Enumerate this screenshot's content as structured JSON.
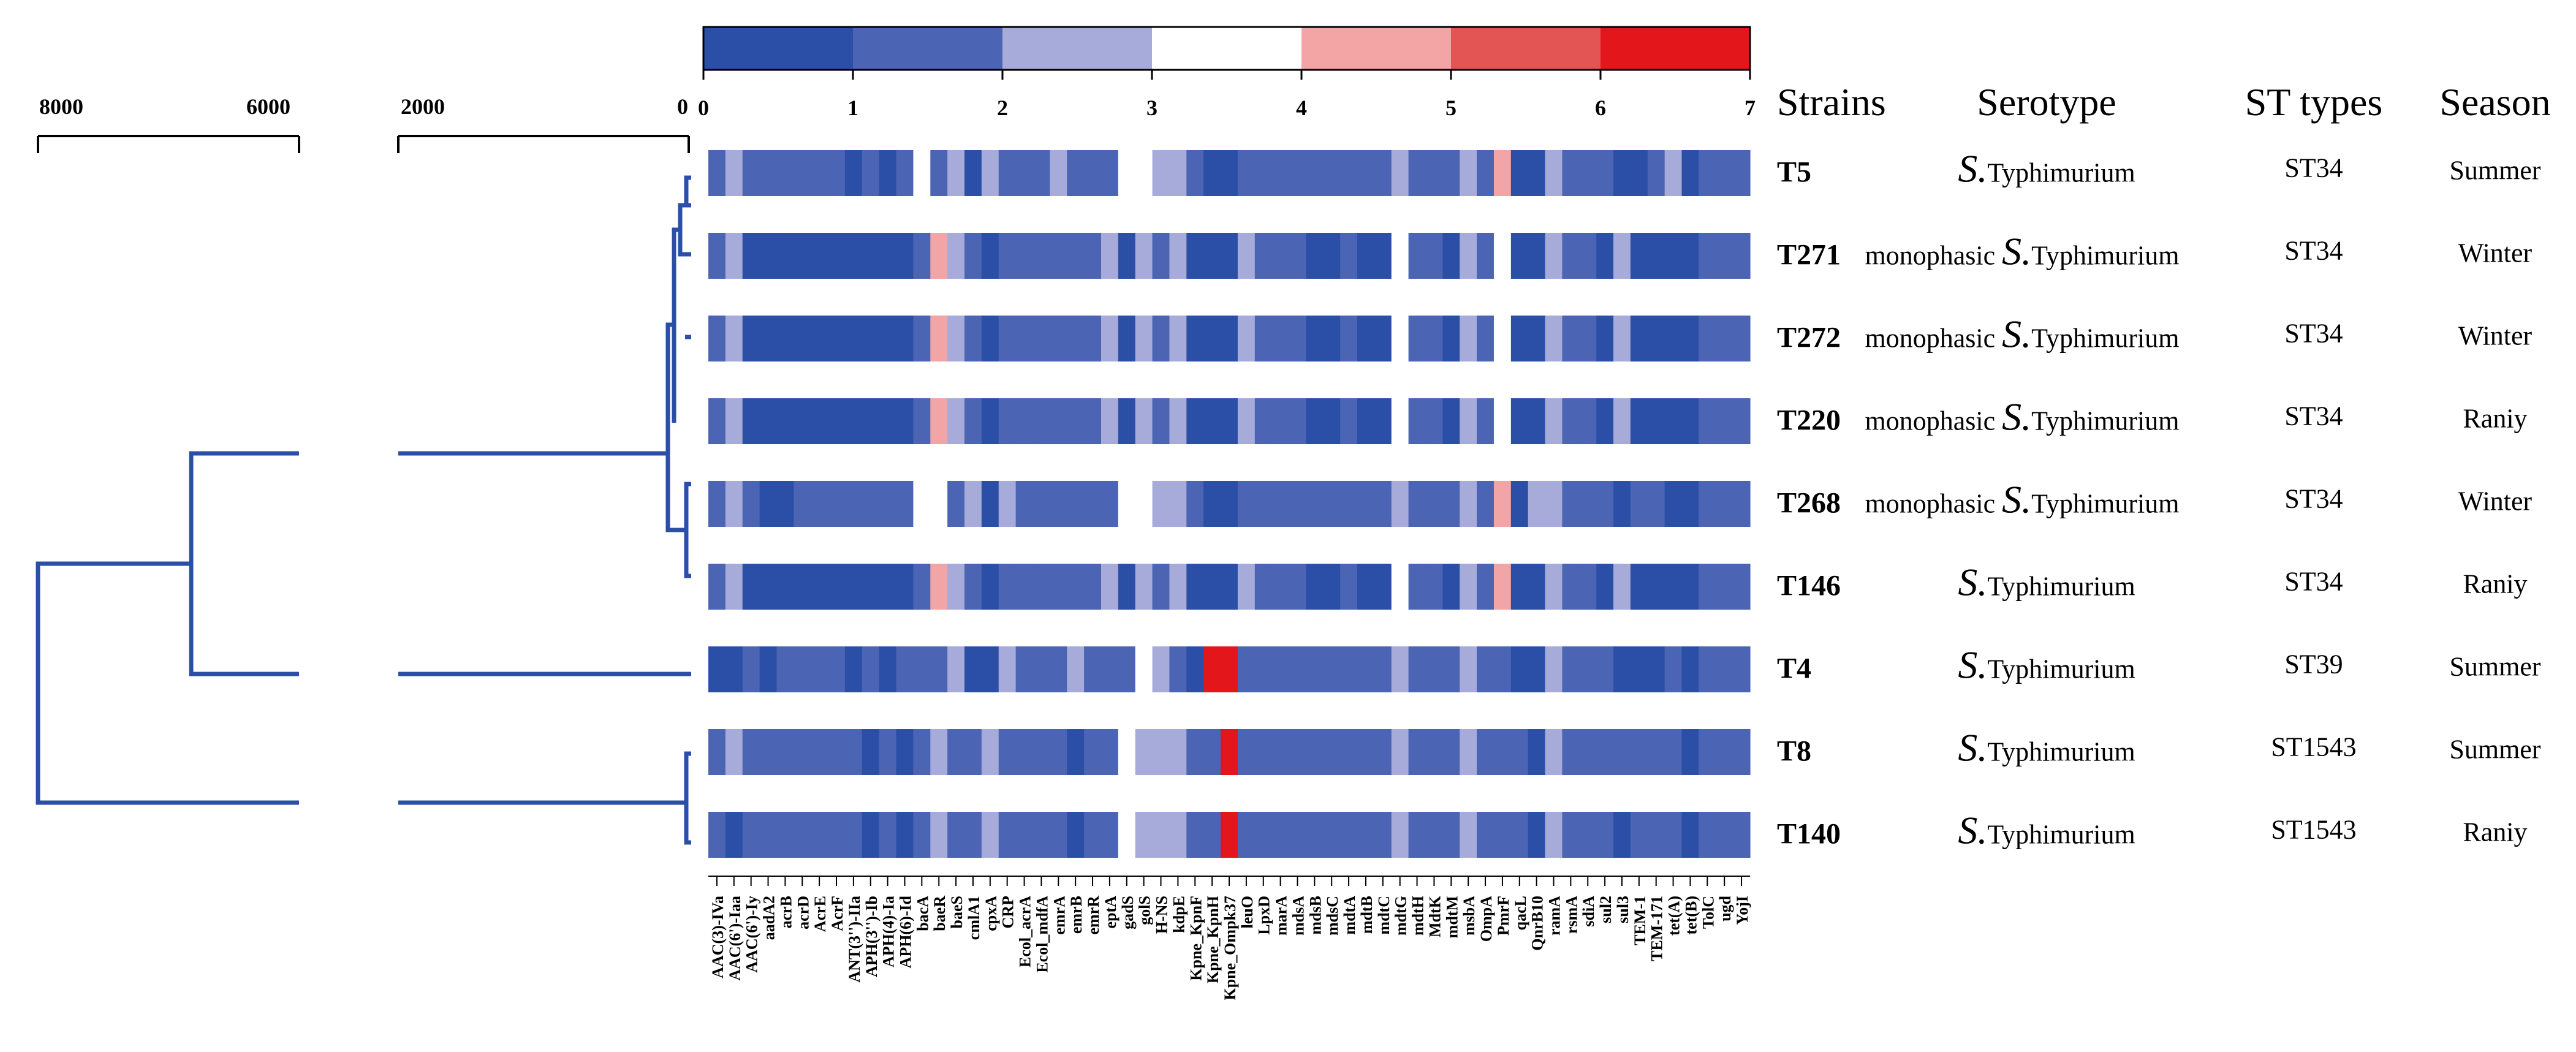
{
  "chart_data": {
    "type": "heatmap",
    "title": "",
    "colorbar": {
      "min": 0,
      "max": 7,
      "ticks": [
        "0",
        "1",
        "2",
        "3",
        "4",
        "5",
        "6",
        "7"
      ],
      "colors": [
        "#2b4fa7",
        "#4b64b3",
        "#a6abd9",
        "#ffffff",
        "#f3a4a4",
        "#e35555",
        "#e3161c"
      ]
    },
    "dendrogram_axis": {
      "ticks": [
        "8000",
        "6000",
        "2000",
        "0"
      ]
    },
    "column_headers": {
      "strains": "Strains",
      "serotype": "Serotype",
      "st_types": "ST types",
      "season": "Season"
    },
    "genes": [
      "AAC(3)-IVa",
      "AAC(6')-Iaa",
      "AAC(6')-Iy",
      "aadA2",
      "acrB",
      "acrD",
      "AcrE",
      "AcrF",
      "ANT(3'')-IIa",
      "APH(3'')-Ib",
      "APH(4)-Ia",
      "APH(6)-Id",
      "bacA",
      "baeR",
      "baeS",
      "cmlA1",
      "cpxA",
      "CRP",
      "Ecol_acrA",
      "Ecol_mdfA",
      "emrA",
      "emrB",
      "emrR",
      "eptA",
      "gadS",
      "golS",
      "H-NS",
      "kdpE",
      "Kpne_KpnF",
      "Kpne_KpnH",
      "Kpne_Ompk37",
      "leuO",
      "LpxD",
      "marA",
      "mdsA",
      "mdsB",
      "mdsC",
      "mdtA",
      "mdtB",
      "mdtC",
      "mdtG",
      "mdtH",
      "MdtK",
      "mdtM",
      "msbA",
      "OmpA",
      "PmrF",
      "qacL",
      "QnrB10",
      "ramA",
      "rsmA",
      "sdiA",
      "sul2",
      "sul3",
      "TEM-1",
      "TEM-171",
      "tet(A)",
      "tet(B)",
      "TolC",
      "ugd",
      "YojI"
    ],
    "series": [
      {
        "name": "T5",
        "serotype_prefix": "",
        "serotype_species": "S.",
        "serotype_rest": "Typhimurium",
        "st": "ST34",
        "season": "Summer",
        "values": [
          1,
          2,
          1,
          1,
          1,
          1,
          1,
          1,
          0,
          1,
          0,
          1,
          3,
          1,
          2,
          0,
          2,
          1,
          1,
          1,
          2,
          1,
          1,
          1,
          3,
          3,
          2,
          2,
          1,
          0,
          0,
          1,
          1,
          1,
          1,
          1,
          1,
          1,
          1,
          1,
          2,
          1,
          1,
          1,
          2,
          1,
          4,
          0,
          0,
          2,
          1,
          1,
          1,
          0,
          0,
          1,
          2,
          0,
          1,
          1,
          1
        ]
      },
      {
        "name": "T271",
        "serotype_prefix": "monophasic ",
        "serotype_species": "S.",
        "serotype_rest": "Typhimurium",
        "st": "ST34",
        "season": "Winter",
        "values": [
          1,
          2,
          0,
          0,
          0,
          0,
          0,
          0,
          0,
          0,
          0,
          0,
          1,
          4,
          2,
          1,
          0,
          1,
          1,
          1,
          1,
          1,
          1,
          2,
          0,
          2,
          1,
          2,
          0,
          0,
          0,
          2,
          1,
          1,
          1,
          0,
          0,
          1,
          0,
          0,
          3,
          1,
          1,
          0,
          2,
          1,
          3,
          0,
          0,
          2,
          1,
          1,
          0,
          2,
          0,
          0,
          0,
          0,
          1,
          1,
          1
        ]
      },
      {
        "name": "T272",
        "serotype_prefix": "monophasic ",
        "serotype_species": "S.",
        "serotype_rest": "Typhimurium",
        "st": "ST34",
        "season": "Winter",
        "values": [
          1,
          2,
          0,
          0,
          0,
          0,
          0,
          0,
          0,
          0,
          0,
          0,
          1,
          4,
          2,
          1,
          0,
          1,
          1,
          1,
          1,
          1,
          1,
          2,
          0,
          2,
          1,
          2,
          0,
          0,
          0,
          2,
          1,
          1,
          1,
          0,
          0,
          1,
          0,
          0,
          3,
          1,
          1,
          0,
          2,
          1,
          3,
          0,
          0,
          2,
          1,
          1,
          0,
          2,
          0,
          0,
          0,
          0,
          1,
          1,
          1
        ]
      },
      {
        "name": "T220",
        "serotype_prefix": "monophasic ",
        "serotype_species": "S.",
        "serotype_rest": "Typhimurium",
        "st": "ST34",
        "season": "Raniy",
        "values": [
          1,
          2,
          0,
          0,
          0,
          0,
          0,
          0,
          0,
          0,
          0,
          0,
          1,
          4,
          2,
          1,
          0,
          1,
          1,
          1,
          1,
          1,
          1,
          2,
          0,
          2,
          1,
          2,
          0,
          0,
          0,
          2,
          1,
          1,
          1,
          0,
          0,
          1,
          0,
          0,
          3,
          1,
          1,
          0,
          2,
          1,
          3,
          0,
          0,
          2,
          1,
          1,
          0,
          2,
          0,
          0,
          0,
          0,
          1,
          1,
          1
        ]
      },
      {
        "name": "T268",
        "serotype_prefix": "monophasic ",
        "serotype_species": "S.",
        "serotype_rest": "Typhimurium",
        "st": "ST34",
        "season": "Winter",
        "values": [
          1,
          2,
          1,
          0,
          0,
          1,
          1,
          1,
          1,
          1,
          1,
          1,
          3,
          3,
          1,
          2,
          0,
          2,
          1,
          1,
          1,
          1,
          1,
          1,
          3,
          3,
          2,
          2,
          1,
          0,
          0,
          1,
          1,
          1,
          1,
          1,
          1,
          1,
          1,
          1,
          2,
          1,
          1,
          1,
          2,
          1,
          4,
          0,
          2,
          2,
          1,
          1,
          1,
          0,
          1,
          1,
          0,
          0,
          1,
          1,
          1
        ]
      },
      {
        "name": "T146",
        "serotype_prefix": "",
        "serotype_species": "S.",
        "serotype_rest": "Typhimurium",
        "st": "ST34",
        "season": "Raniy",
        "values": [
          1,
          2,
          0,
          0,
          0,
          0,
          0,
          0,
          0,
          0,
          0,
          0,
          1,
          4,
          2,
          1,
          0,
          1,
          1,
          1,
          1,
          1,
          1,
          2,
          0,
          2,
          1,
          2,
          0,
          0,
          0,
          2,
          1,
          1,
          1,
          0,
          0,
          1,
          0,
          0,
          3,
          1,
          1,
          0,
          2,
          1,
          4,
          0,
          0,
          2,
          1,
          1,
          0,
          2,
          0,
          0,
          0,
          0,
          1,
          1,
          1
        ]
      },
      {
        "name": "T4",
        "serotype_prefix": "",
        "serotype_species": "S.",
        "serotype_rest": "Typhimurium",
        "st": "ST39",
        "season": "Summer",
        "values": [
          0,
          0,
          1,
          0,
          1,
          1,
          1,
          1,
          0,
          1,
          0,
          1,
          1,
          1,
          2,
          0,
          0,
          2,
          1,
          1,
          1,
          2,
          1,
          1,
          1,
          3,
          2,
          1,
          0,
          6,
          6,
          1,
          1,
          1,
          1,
          1,
          1,
          1,
          1,
          1,
          2,
          1,
          1,
          1,
          2,
          1,
          1,
          0,
          0,
          2,
          1,
          1,
          1,
          0,
          0,
          0,
          1,
          0,
          1,
          1,
          1
        ]
      },
      {
        "name": "T8",
        "serotype_prefix": "",
        "serotype_species": "S.",
        "serotype_rest": "Typhimurium",
        "st": "ST1543",
        "season": "Summer",
        "values": [
          1,
          2,
          1,
          1,
          1,
          1,
          1,
          1,
          1,
          0,
          1,
          0,
          1,
          2,
          1,
          1,
          2,
          1,
          1,
          1,
          1,
          0,
          1,
          1,
          3,
          2,
          2,
          2,
          1,
          1,
          6,
          1,
          1,
          1,
          1,
          1,
          1,
          1,
          1,
          1,
          2,
          1,
          1,
          1,
          2,
          1,
          1,
          1,
          0,
          2,
          1,
          1,
          1,
          1,
          1,
          1,
          1,
          0,
          1,
          1,
          1
        ]
      },
      {
        "name": "T140",
        "serotype_prefix": "",
        "serotype_species": "S.",
        "serotype_rest": "Typhimurium",
        "st": "ST1543",
        "season": "Raniy",
        "values": [
          1,
          0,
          1,
          1,
          1,
          1,
          1,
          1,
          1,
          0,
          1,
          0,
          1,
          2,
          1,
          1,
          2,
          1,
          1,
          1,
          1,
          0,
          1,
          1,
          3,
          2,
          2,
          2,
          1,
          1,
          6,
          1,
          1,
          1,
          1,
          1,
          1,
          1,
          1,
          1,
          2,
          1,
          1,
          1,
          2,
          1,
          1,
          1,
          0,
          2,
          1,
          1,
          1,
          0,
          1,
          1,
          1,
          0,
          1,
          1,
          1
        ]
      }
    ]
  }
}
